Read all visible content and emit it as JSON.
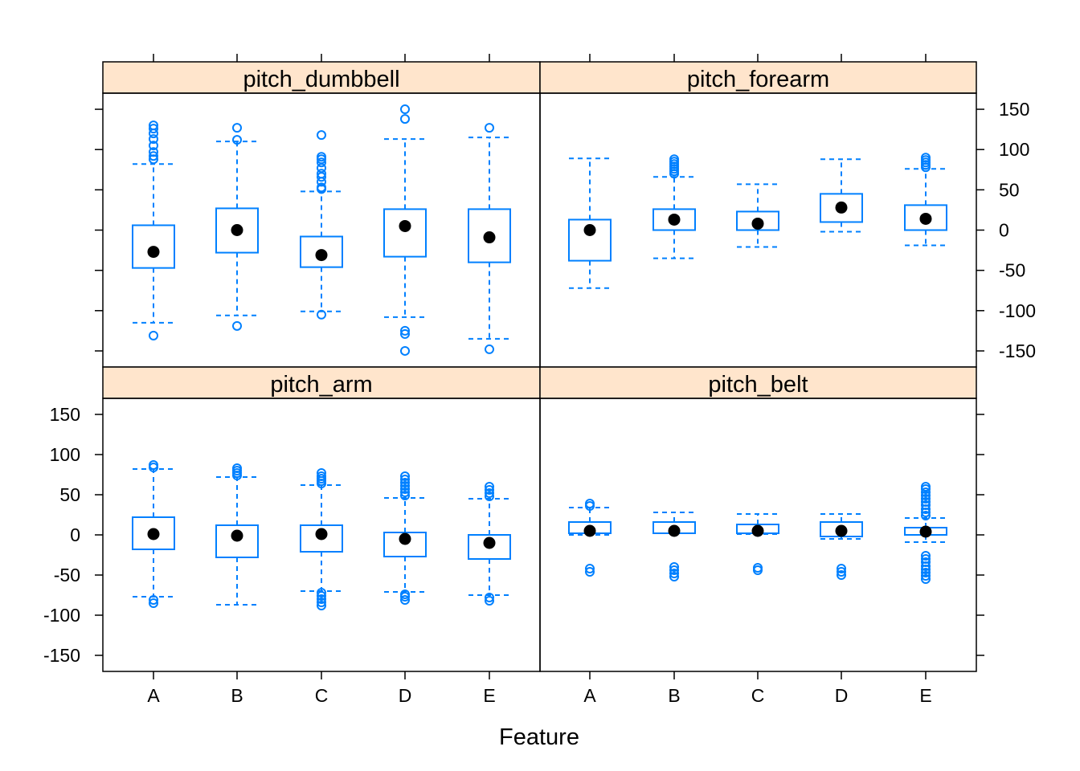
{
  "chart_data": {
    "type": "boxplot",
    "layout": "lattice 2x2 panels, shared y axis",
    "xlabel": "Feature",
    "ylabel": "",
    "ylim": [
      -170,
      170
    ],
    "y_ticks": [
      -150,
      -100,
      -50,
      0,
      50,
      100,
      150
    ],
    "categories": [
      "A",
      "B",
      "C",
      "D",
      "E"
    ],
    "colors": {
      "box": "#0080ff",
      "median": "#000000",
      "strip": "#ffe5cc",
      "frame": "#000000"
    },
    "panels": [
      {
        "name": "pitch_dumbbell",
        "row": 0,
        "col": 0,
        "boxes": [
          {
            "category": "A",
            "whisker_low": -115,
            "q1": -47,
            "median": -27,
            "q3": 6,
            "whisker_high": 82,
            "outliers": [
              -131,
              88,
              92,
              97,
              105,
              113,
              120,
              126,
              130
            ]
          },
          {
            "category": "B",
            "whisker_low": -106,
            "q1": -28,
            "median": 0,
            "q3": 27,
            "whisker_high": 110,
            "outliers": [
              -119,
              112,
              127
            ]
          },
          {
            "category": "C",
            "whisker_low": -101,
            "q1": -46,
            "median": -31,
            "q3": -8,
            "whisker_high": 48,
            "outliers": [
              -105,
              51,
              53,
              60,
              66,
              70,
              77,
              84,
              88,
              91,
              118
            ]
          },
          {
            "category": "D",
            "whisker_low": -108,
            "q1": -33,
            "median": 5,
            "q3": 26,
            "whisker_high": 113,
            "outliers": [
              -150,
              -129,
              -125,
              138,
              150
            ]
          },
          {
            "category": "E",
            "whisker_low": -135,
            "q1": -40,
            "median": -9,
            "q3": 26,
            "whisker_high": 115,
            "outliers": [
              -148,
              127
            ]
          }
        ]
      },
      {
        "name": "pitch_forearm",
        "row": 0,
        "col": 1,
        "boxes": [
          {
            "category": "A",
            "whisker_low": -72,
            "q1": -38,
            "median": 0,
            "q3": 13,
            "whisker_high": 89,
            "outliers": []
          },
          {
            "category": "B",
            "whisker_low": -35,
            "q1": 0,
            "median": 13,
            "q3": 26,
            "whisker_high": 66,
            "outliers": [
              70,
              73,
              76,
              79,
              82,
              85,
              88
            ]
          },
          {
            "category": "C",
            "whisker_low": -21,
            "q1": 0,
            "median": 8,
            "q3": 23,
            "whisker_high": 57,
            "outliers": []
          },
          {
            "category": "D",
            "whisker_low": -2,
            "q1": 10,
            "median": 28,
            "q3": 45,
            "whisker_high": 88,
            "outliers": []
          },
          {
            "category": "E",
            "whisker_low": -19,
            "q1": 0,
            "median": 14,
            "q3": 31,
            "whisker_high": 76,
            "outliers": [
              78,
              81,
              84,
              87,
              90
            ]
          }
        ]
      },
      {
        "name": "pitch_arm",
        "row": 1,
        "col": 0,
        "boxes": [
          {
            "category": "A",
            "whisker_low": -77,
            "q1": -18,
            "median": 1,
            "q3": 22,
            "whisker_high": 82,
            "outliers": [
              -85,
              -81,
              84,
              87
            ]
          },
          {
            "category": "B",
            "whisker_low": -87,
            "q1": -28,
            "median": -1,
            "q3": 12,
            "whisker_high": 72,
            "outliers": [
              74,
              77,
              80,
              83
            ]
          },
          {
            "category": "C",
            "whisker_low": -70,
            "q1": -21,
            "median": 1,
            "q3": 12,
            "whisker_high": 62,
            "outliers": [
              -88,
              -84,
              -80,
              -76,
              -72,
              64,
              67,
              70,
              73,
              77
            ]
          },
          {
            "category": "D",
            "whisker_low": -71,
            "q1": -27,
            "median": -5,
            "q3": 3,
            "whisker_high": 46,
            "outliers": [
              -81,
              -77,
              -74,
              49,
              53,
              57,
              61,
              65,
              69,
              73
            ]
          },
          {
            "category": "E",
            "whisker_low": -75,
            "q1": -30,
            "median": -10,
            "q3": 0,
            "whisker_high": 45,
            "outliers": [
              -82,
              -78,
              48,
              52,
              56,
              60
            ]
          }
        ]
      },
      {
        "name": "pitch_belt",
        "row": 1,
        "col": 1,
        "boxes": [
          {
            "category": "A",
            "whisker_low": 0,
            "q1": 2,
            "median": 5,
            "q3": 16,
            "whisker_high": 34,
            "outliers": [
              -46,
              -42,
              36,
              39
            ]
          },
          {
            "category": "B",
            "whisker_low": 2,
            "q1": 2,
            "median": 5,
            "q3": 16,
            "whisker_high": 28,
            "outliers": [
              -52,
              -48,
              -44,
              -40
            ]
          },
          {
            "category": "C",
            "whisker_low": 1,
            "q1": 2,
            "median": 5,
            "q3": 13,
            "whisker_high": 26,
            "outliers": [
              -44,
              -41
            ]
          },
          {
            "category": "D",
            "whisker_low": -5,
            "q1": -2,
            "median": 5,
            "q3": 16,
            "whisker_high": 26,
            "outliers": [
              -50,
              -46,
              -42
            ]
          },
          {
            "category": "E",
            "whisker_low": -9,
            "q1": 0,
            "median": 4,
            "q3": 9,
            "whisker_high": 21,
            "outliers": [
              -55,
              -51,
              -47,
              -43,
              -39,
              -34,
              -30,
              -26,
              24,
              28,
              32,
              37,
              41,
              45,
              49,
              53,
              57,
              60
            ]
          }
        ]
      }
    ]
  }
}
